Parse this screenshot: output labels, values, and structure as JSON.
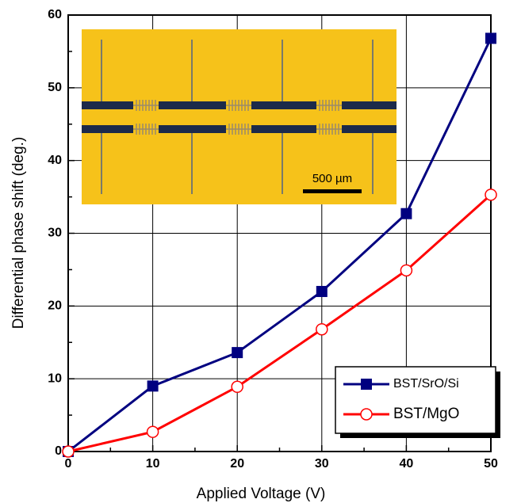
{
  "chart_data": {
    "type": "line",
    "x_label": "Applied Voltage (V)",
    "y_label": "Differential phase shift (deg.)",
    "x": [
      0,
      10,
      20,
      30,
      40,
      50
    ],
    "series": [
      {
        "name": "BST/SrO/Si",
        "color": "#000080",
        "marker": "square",
        "values": [
          0,
          9.0,
          13.6,
          22.0,
          32.7,
          56.8
        ]
      },
      {
        "name": "BST/MgO",
        "color": "#ff0000",
        "marker": "circle",
        "values": [
          0,
          2.7,
          8.9,
          16.8,
          24.9,
          35.3
        ]
      }
    ],
    "xlim": [
      0,
      50
    ],
    "xticks": [
      0,
      10,
      20,
      30,
      40,
      50
    ],
    "ylim": [
      0,
      60
    ],
    "yticks": [
      0,
      10,
      20,
      30,
      40,
      50,
      60
    ],
    "grid": true,
    "legend": "lower-right",
    "inset_label": "500 µm"
  }
}
